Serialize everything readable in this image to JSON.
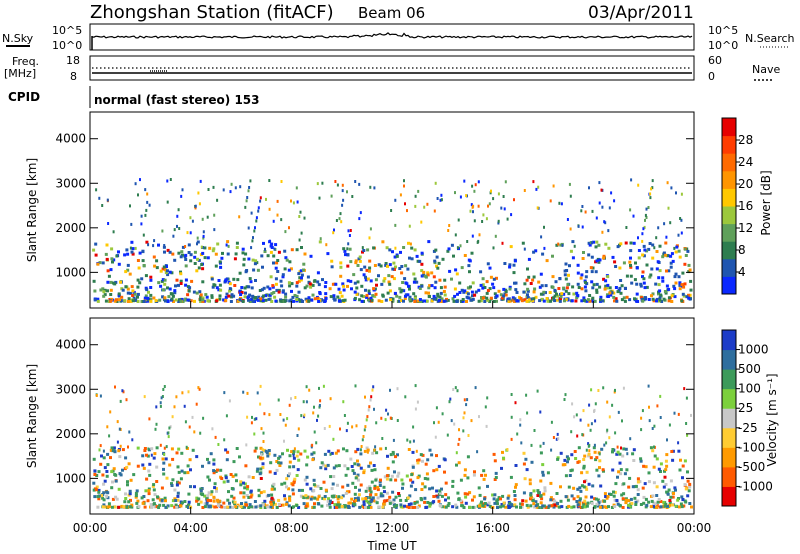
{
  "header": {
    "station": "Zhongshan Station (fitACF)",
    "beam": "Beam 06",
    "date": "03/Apr/2011"
  },
  "panels": {
    "nsky_label": "N.Sky",
    "nsearch_label": "N.Search",
    "freq_label_line1": "Freq.",
    "freq_label_line2": "[MHz]",
    "nave_label": "Nave",
    "cpid_label": "CPID",
    "cpid_text": "normal (fast stereo) 153",
    "nsky_ticks": [
      "10^5",
      "10^0"
    ],
    "nsearch_ticks": [
      "10^5",
      "10^0"
    ],
    "freq_ticks": [
      "18",
      "8"
    ],
    "nave_ticks": [
      "60",
      "0"
    ]
  },
  "colors": {
    "power": [
      "#0a28ff",
      "#1f55b0",
      "#2e7d4f",
      "#5fa05a",
      "#9cc83c",
      "#ffc800",
      "#ff9500",
      "#ff6a00",
      "#ff3c00",
      "#e60000"
    ],
    "velocity": [
      "#e60000",
      "#ff5a00",
      "#ff9a00",
      "#ffcc33",
      "#c8c8c8",
      "#7cd03c",
      "#3c9a5a",
      "#2e6e9e",
      "#1c3cc8"
    ]
  },
  "chart_data": [
    {
      "type": "heatmap",
      "name": "power",
      "ylabel": "Slant Range [km]",
      "yticks": [
        "1000",
        "2000",
        "3000",
        "4000"
      ],
      "ylim": [
        200,
        4600
      ],
      "colorbar_label": "Power [dB]",
      "colorbar_ticks": [
        "4",
        "8",
        "12",
        "16",
        "20",
        "24",
        "28"
      ],
      "zlim": [
        0,
        30
      ],
      "xticks": [
        "00:00",
        "04:00",
        "08:00",
        "12:00",
        "16:00",
        "20:00",
        "00:00"
      ],
      "xlabel": "Time UT"
    },
    {
      "type": "heatmap",
      "name": "velocity",
      "ylabel": "Slant Range [km]",
      "yticks": [
        "1000",
        "2000",
        "3000",
        "4000"
      ],
      "ylim": [
        200,
        4600
      ],
      "colorbar_label": "Velocity [m s⁻¹]",
      "colorbar_ticks": [
        "-1000",
        "-500",
        "-100",
        "-25",
        "25",
        "100",
        "500",
        "1000"
      ],
      "xticks": [
        "00:00",
        "04:00",
        "08:00",
        "12:00",
        "16:00",
        "20:00",
        "00:00"
      ],
      "xlabel": "Time UT"
    }
  ]
}
